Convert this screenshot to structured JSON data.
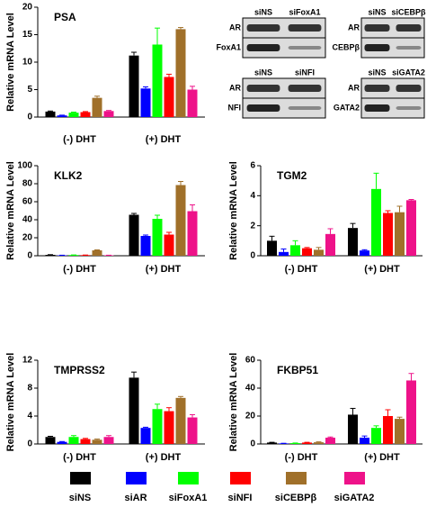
{
  "chart_data": [
    {
      "type": "bar",
      "title": "PSA",
      "y_label": "Relative mRNA Level",
      "categories": [
        "(-) DHT",
        "(+) DHT"
      ],
      "ylim": [
        0,
        20
      ],
      "yticks": [
        0,
        5,
        10,
        15,
        20
      ],
      "series": [
        {
          "name": "siNS",
          "color": "#000000",
          "values": [
            1.0,
            11.2
          ],
          "errors": [
            0.1,
            0.6
          ]
        },
        {
          "name": "siAR",
          "color": "#0000ff",
          "values": [
            0.3,
            5.2
          ],
          "errors": [
            0.05,
            0.3
          ]
        },
        {
          "name": "siFoxA1",
          "color": "#00ff00",
          "values": [
            0.8,
            13.2
          ],
          "errors": [
            0.1,
            3.0
          ]
        },
        {
          "name": "siNFI",
          "color": "#ff0000",
          "values": [
            0.9,
            7.3
          ],
          "errors": [
            0.1,
            0.5
          ]
        },
        {
          "name": "siCEBPβ",
          "color": "#a0702a",
          "values": [
            3.5,
            16.0
          ],
          "errors": [
            0.3,
            0.3
          ]
        },
        {
          "name": "siGATA2",
          "color": "#ee1289",
          "values": [
            1.1,
            5.0
          ],
          "errors": [
            0.1,
            0.6
          ]
        }
      ]
    },
    {
      "type": "bar",
      "title": "KLK2",
      "y_label": "Relative mRNA Level",
      "categories": [
        "(-) DHT",
        "(+) DHT"
      ],
      "ylim": [
        0,
        100
      ],
      "yticks": [
        0,
        20,
        40,
        60,
        80,
        100
      ],
      "series": [
        {
          "name": "siNS",
          "color": "#000000",
          "values": [
            1,
            45.5
          ],
          "errors": [
            0.2,
            1.5
          ]
        },
        {
          "name": "siAR",
          "color": "#0000ff",
          "values": [
            0.5,
            22
          ],
          "errors": [
            0.1,
            1
          ]
        },
        {
          "name": "siFoxA1",
          "color": "#00ff00",
          "values": [
            0.8,
            41
          ],
          "errors": [
            0.1,
            4
          ]
        },
        {
          "name": "siNFI",
          "color": "#ff0000",
          "values": [
            0.7,
            23.5
          ],
          "errors": [
            0.1,
            2.5
          ]
        },
        {
          "name": "siCEBPβ",
          "color": "#a0702a",
          "values": [
            6,
            78.5
          ],
          "errors": [
            0.5,
            4
          ]
        },
        {
          "name": "siGATA2",
          "color": "#ee1289",
          "values": [
            0.5,
            49.5
          ],
          "errors": [
            0.1,
            7
          ]
        }
      ]
    },
    {
      "type": "bar",
      "title": "TGM2",
      "y_label": "Relative mRNA Level",
      "categories": [
        "(-) DHT",
        "(+) DHT"
      ],
      "ylim": [
        0,
        6
      ],
      "yticks": [
        0,
        2,
        4,
        6
      ],
      "series": [
        {
          "name": "siNS",
          "color": "#000000",
          "values": [
            1.0,
            1.85
          ],
          "errors": [
            0.3,
            0.3
          ]
        },
        {
          "name": "siAR",
          "color": "#0000ff",
          "values": [
            0.25,
            0.35
          ],
          "errors": [
            0.2,
            0.05
          ]
        },
        {
          "name": "siFoxA1",
          "color": "#00ff00",
          "values": [
            0.7,
            4.45
          ],
          "errors": [
            0.3,
            1.05
          ]
        },
        {
          "name": "siNFI",
          "color": "#ff0000",
          "values": [
            0.5,
            2.85
          ],
          "errors": [
            0.05,
            0.15
          ]
        },
        {
          "name": "siCEBPβ",
          "color": "#a0702a",
          "values": [
            0.4,
            2.9
          ],
          "errors": [
            0.15,
            0.4
          ]
        },
        {
          "name": "siGATA2",
          "color": "#ee1289",
          "values": [
            1.45,
            3.7
          ],
          "errors": [
            0.35,
            0.05
          ]
        }
      ]
    },
    {
      "type": "bar",
      "title": "TMPRSS2",
      "y_label": "Relative mRNA Level",
      "categories": [
        "(-) DHT",
        "(+) DHT"
      ],
      "ylim": [
        0,
        12
      ],
      "yticks": [
        0,
        4,
        8,
        12
      ],
      "series": [
        {
          "name": "siNS",
          "color": "#000000",
          "values": [
            1.0,
            9.5
          ],
          "errors": [
            0.1,
            0.8
          ]
        },
        {
          "name": "siAR",
          "color": "#0000ff",
          "values": [
            0.3,
            2.3
          ],
          "errors": [
            0.05,
            0.1
          ]
        },
        {
          "name": "siFoxA1",
          "color": "#00ff00",
          "values": [
            1.0,
            5.0
          ],
          "errors": [
            0.2,
            0.7
          ]
        },
        {
          "name": "siNFI",
          "color": "#ff0000",
          "values": [
            0.7,
            4.7
          ],
          "errors": [
            0.1,
            0.5
          ]
        },
        {
          "name": "siCEBPβ",
          "color": "#a0702a",
          "values": [
            0.6,
            6.6
          ],
          "errors": [
            0.1,
            0.2
          ]
        },
        {
          "name": "siGATA2",
          "color": "#ee1289",
          "values": [
            1.0,
            3.8
          ],
          "errors": [
            0.2,
            0.4
          ]
        }
      ]
    },
    {
      "type": "bar",
      "title": "FKBP51",
      "y_label": "Relative mRNA Level",
      "categories": [
        "(-) DHT",
        "(+) DHT"
      ],
      "ylim": [
        0,
        60
      ],
      "yticks": [
        0,
        20,
        40,
        60
      ],
      "series": [
        {
          "name": "siNS",
          "color": "#000000",
          "values": [
            1,
            21
          ],
          "errors": [
            0.2,
            4.5
          ]
        },
        {
          "name": "siAR",
          "color": "#0000ff",
          "values": [
            0.4,
            4.5
          ],
          "errors": [
            0.1,
            1.2
          ]
        },
        {
          "name": "siFoxA1",
          "color": "#00ff00",
          "values": [
            0.6,
            11.5
          ],
          "errors": [
            0.1,
            1.5
          ]
        },
        {
          "name": "siNFI",
          "color": "#ff0000",
          "values": [
            1,
            20
          ],
          "errors": [
            0.2,
            4.5
          ]
        },
        {
          "name": "siCEBPβ",
          "color": "#a0702a",
          "values": [
            1.2,
            18
          ],
          "errors": [
            0.3,
            1.2
          ]
        },
        {
          "name": "siGATA2",
          "color": "#ee1289",
          "values": [
            4.5,
            45.5
          ],
          "errors": [
            0.5,
            5
          ]
        }
      ]
    }
  ],
  "blots": [
    {
      "lanes": [
        "siNS",
        "siFoxA1"
      ],
      "proteins": [
        "AR",
        "FoxA1"
      ]
    },
    {
      "lanes": [
        "siNS",
        "siCEBPβ"
      ],
      "proteins": [
        "AR",
        "CEBPβ"
      ]
    },
    {
      "lanes": [
        "siNS",
        "siNFI"
      ],
      "proteins": [
        "AR",
        "NFI"
      ]
    },
    {
      "lanes": [
        "siNS",
        "siGATA2"
      ],
      "proteins": [
        "AR",
        "GATA2"
      ]
    }
  ]
}
